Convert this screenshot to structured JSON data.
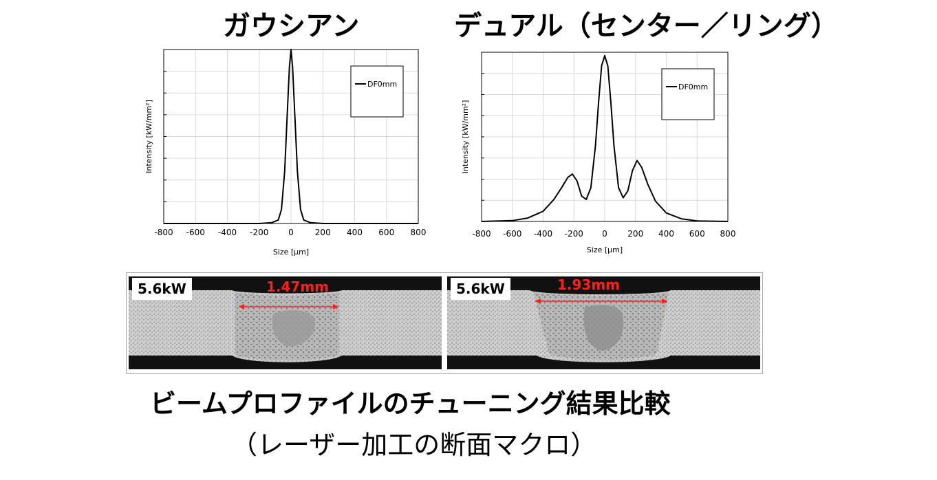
{
  "chart_data": [
    {
      "type": "line",
      "title": "ガウシアン",
      "xlabel": "Size [μm]",
      "ylabel": "Intensity [kW/mm²]",
      "xlim": [
        -800,
        800
      ],
      "xticks": [
        -800,
        -600,
        -400,
        -200,
        0,
        200,
        400,
        600,
        800
      ],
      "ylim": [
        0,
        1.0
      ],
      "y_ticks_labeled": false,
      "grid": true,
      "legend_position": "top-right",
      "series": [
        {
          "name": "DF0mm",
          "color": "#000000",
          "x": [
            -800,
            -200,
            -120,
            -80,
            -60,
            -40,
            -25,
            -10,
            0,
            10,
            25,
            40,
            60,
            80,
            120,
            200,
            800
          ],
          "y": [
            0,
            0,
            0.005,
            0.02,
            0.08,
            0.3,
            0.6,
            0.9,
            1.0,
            0.9,
            0.6,
            0.3,
            0.08,
            0.02,
            0.005,
            0,
            0
          ]
        }
      ]
    },
    {
      "type": "line",
      "title": "デュアル（センター／リング）",
      "xlabel": "Size [μm]",
      "ylabel": "Intensity [kW/mm²]",
      "xlim": [
        -800,
        800
      ],
      "xticks": [
        -800,
        -600,
        -400,
        -200,
        0,
        200,
        400,
        600,
        800
      ],
      "ylim": [
        0,
        1.0
      ],
      "y_ticks_labeled": false,
      "grid": true,
      "legend_position": "top-right",
      "series": [
        {
          "name": "DF0mm",
          "color": "#000000",
          "x": [
            -800,
            -600,
            -500,
            -400,
            -330,
            -280,
            -240,
            -210,
            -180,
            -150,
            -120,
            -90,
            -60,
            -40,
            -20,
            0,
            20,
            40,
            60,
            90,
            120,
            150,
            180,
            210,
            240,
            280,
            330,
            400,
            500,
            600,
            800
          ],
          "y": [
            0,
            0.005,
            0.02,
            0.06,
            0.13,
            0.2,
            0.26,
            0.28,
            0.24,
            0.15,
            0.13,
            0.2,
            0.45,
            0.7,
            0.92,
            0.98,
            0.92,
            0.7,
            0.45,
            0.2,
            0.14,
            0.18,
            0.3,
            0.36,
            0.32,
            0.22,
            0.12,
            0.05,
            0.015,
            0.003,
            0
          ]
        }
      ]
    }
  ],
  "micrographs": [
    {
      "power": "5.6kW",
      "bead_width": "1.47mm"
    },
    {
      "power": "5.6kW",
      "bead_width": "1.93mm"
    }
  ],
  "caption": {
    "main": "ビームプロファイルのチューニング結果比較",
    "sub": "（レーザー加工の断面マクロ）"
  }
}
